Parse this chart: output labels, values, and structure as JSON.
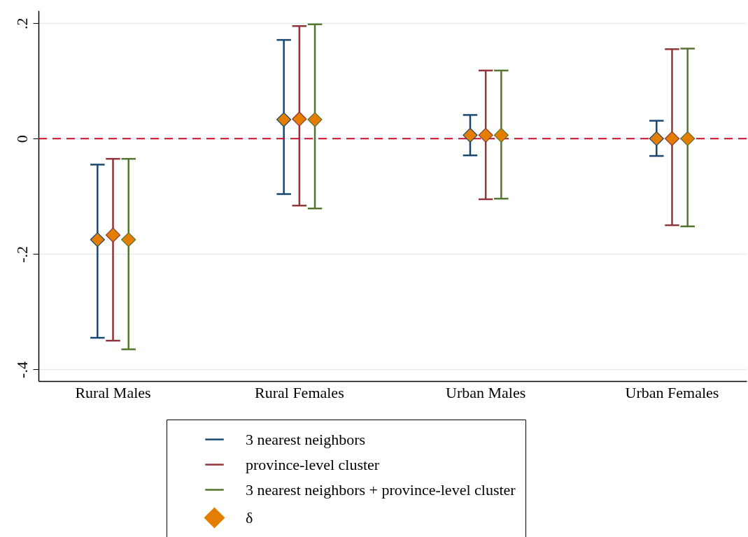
{
  "chart_data": {
    "type": "scatter",
    "categories": [
      "Rural Males",
      "Rural Females",
      "Urban Males",
      "Urban Females"
    ],
    "ylim": [
      -0.42,
      0.222
    ],
    "yticks": [
      {
        "value": 0.2,
        "label": ".2"
      },
      0,
      {
        "value": -0.2,
        "label": "-.2"
      },
      {
        "value": -0.4,
        "label": "-.4"
      }
    ],
    "grid": "y",
    "legend": "bottom",
    "marker": "diamond",
    "ref_lines": [
      {
        "axis": "y",
        "value": 0,
        "color": "#c4122f",
        "line_style": "dashed"
      }
    ],
    "series": [
      {
        "name": "3 nearest neighbors",
        "color": "#1a476f",
        "values": [
          -0.175,
          0.033,
          0.006,
          0.0
        ],
        "errors": [
          [
            -0.345,
            -0.045
          ],
          [
            -0.096,
            0.171
          ],
          [
            -0.029,
            0.041
          ],
          [
            -0.03,
            0.031
          ]
        ]
      },
      {
        "name": "province-level cluster",
        "color": "#90353b",
        "values": [
          -0.167,
          0.034,
          0.006,
          0.0
        ],
        "errors": [
          [
            -0.35,
            -0.035
          ],
          [
            -0.116,
            0.195
          ],
          [
            -0.105,
            0.118
          ],
          [
            -0.15,
            0.155
          ]
        ]
      },
      {
        "name": "3 nearest neighbors + province-level cluster",
        "color": "#55752f",
        "values": [
          -0.175,
          0.033,
          0.006,
          0.0
        ],
        "errors": [
          [
            -0.365,
            -0.035
          ],
          [
            -0.121,
            0.198
          ],
          [
            -0.104,
            0.118
          ],
          [
            -0.152,
            0.156
          ]
        ]
      },
      {
        "name": "δ",
        "color": "#e37e00",
        "values": [
          null,
          null,
          null,
          null
        ]
      }
    ]
  }
}
